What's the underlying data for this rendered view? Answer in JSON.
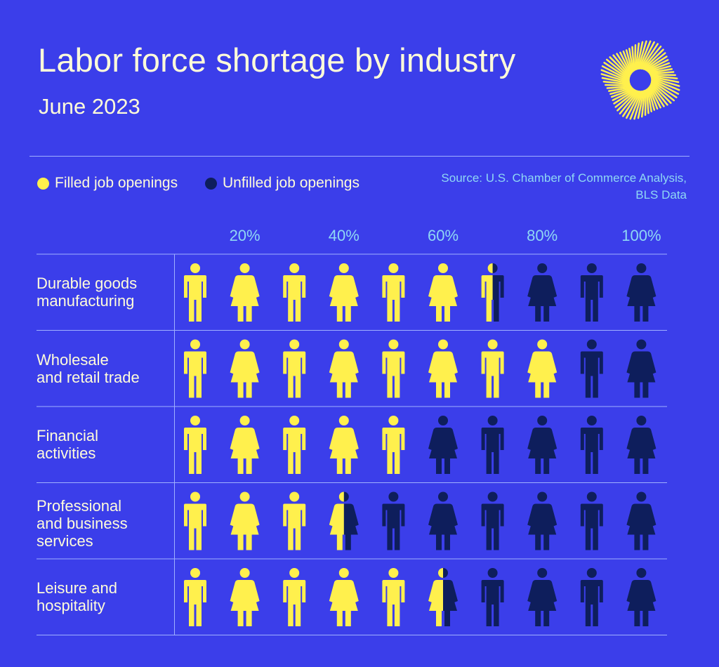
{
  "title": "Labor force shortage by industry",
  "subtitle": "June 2023",
  "source_lines": [
    "Source: U.S. Chamber of Commerce Analysis,",
    "BLS Data"
  ],
  "legend": [
    {
      "label": "Filled job openings",
      "color": "#FFF04D"
    },
    {
      "label": "Unfilled job openings",
      "color": "#0E1E5C"
    }
  ],
  "colors": {
    "background": "#3B3EEA",
    "filled": "#FFF04D",
    "unfilled": "#0E1E5C",
    "accent": "#8FD8F4"
  },
  "chart_data": {
    "type": "pictogram",
    "icon_unit": 10,
    "icons_per_row": 10,
    "icon_pattern": [
      "man-icon",
      "woman-icon"
    ],
    "x_ticks": [
      "20%",
      "40%",
      "60%",
      "80%",
      "100%"
    ],
    "rows": [
      {
        "lines": [
          "Durable goods",
          "manufacturing"
        ],
        "filled_percent": 65
      },
      {
        "lines": [
          "Wholesale",
          "and retail trade"
        ],
        "filled_percent": 80
      },
      {
        "lines": [
          "Financial",
          "activities"
        ],
        "filled_percent": 50
      },
      {
        "lines": [
          "Professional",
          "and business",
          "services"
        ],
        "filled_percent": 35
      },
      {
        "lines": [
          "Leisure and",
          "hospitality"
        ],
        "filled_percent": 55
      }
    ]
  }
}
